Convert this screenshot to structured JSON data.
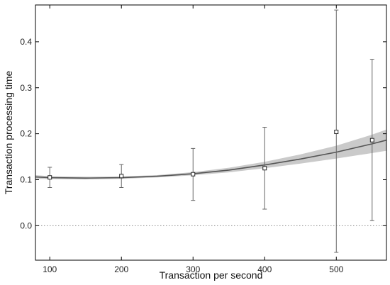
{
  "chart_data": {
    "type": "line",
    "xlabel": "Transaction per second",
    "ylabel": "Transaction processing time",
    "xlim": [
      80,
      570
    ],
    "ylim": [
      -0.075,
      0.48
    ],
    "x_ticks": [
      "100",
      "200",
      "300",
      "400",
      "500"
    ],
    "y_ticks": [
      "0.0",
      "0.1",
      "0.2",
      "0.3",
      "0.4"
    ],
    "grid": false,
    "zero_line": "dotted",
    "points": [
      {
        "x": 100,
        "y": 0.105,
        "err_low": 0.083,
        "err_high": 0.127
      },
      {
        "x": 200,
        "y": 0.108,
        "err_low": 0.083,
        "err_high": 0.133
      },
      {
        "x": 300,
        "y": 0.112,
        "err_low": 0.055,
        "err_high": 0.168
      },
      {
        "x": 400,
        "y": 0.125,
        "err_low": 0.036,
        "err_high": 0.214
      },
      {
        "x": 500,
        "y": 0.204,
        "err_low": -0.058,
        "err_high": 0.469
      },
      {
        "x": 550,
        "y": 0.186,
        "err_low": 0.011,
        "err_high": 0.362
      }
    ],
    "fit_curve": {
      "x": [
        80,
        100,
        150,
        200,
        250,
        300,
        350,
        400,
        450,
        500,
        550,
        570
      ],
      "y": [
        0.106,
        0.1045,
        0.1035,
        0.1045,
        0.1075,
        0.113,
        0.121,
        0.132,
        0.145,
        0.16,
        0.178,
        0.186
      ],
      "lower": [
        0.102,
        0.1015,
        0.1005,
        0.102,
        0.105,
        0.1095,
        0.116,
        0.125,
        0.135,
        0.146,
        0.158,
        0.163
      ],
      "upper": [
        0.11,
        0.1075,
        0.1065,
        0.107,
        0.11,
        0.1165,
        0.126,
        0.139,
        0.155,
        0.174,
        0.198,
        0.209
      ]
    },
    "colors": {
      "band": "#c4c4c4",
      "line": "#555555",
      "marker_edge": "#222222",
      "errorbar": "#666666",
      "zero_line": "#8a8a8a",
      "axes": "#000000"
    }
  }
}
